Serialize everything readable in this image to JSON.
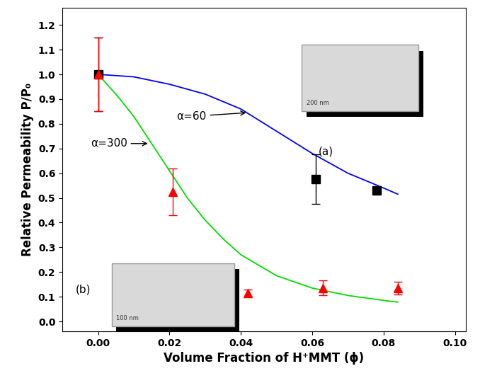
{
  "chart_data": {
    "type": "scatter",
    "x_label": "Volume Fraction of H⁺MMT (ϕ)",
    "y_label": "Relative Permeability P/P₀",
    "xlim": [
      -0.01,
      0.103
    ],
    "xticks": [
      {
        "value": 0.0,
        "label": "0.00"
      },
      {
        "value": 0.02,
        "label": "0.02"
      },
      {
        "value": 0.04,
        "label": "0.04"
      },
      {
        "value": 0.06,
        "label": "0.06"
      },
      {
        "value": 0.08,
        "label": "0.08"
      },
      {
        "value": 0.1,
        "label": "0.10"
      }
    ],
    "ylim": [
      -0.04,
      1.27
    ],
    "yticks": [
      0.0,
      0.1,
      0.2,
      0.3,
      0.4,
      0.5,
      0.6,
      0.7,
      0.8,
      0.9,
      1.0,
      1.1,
      1.2
    ],
    "grid": false,
    "series": [
      {
        "type": "line",
        "color": "#0000ff",
        "line_style": "solid",
        "x": [
          0.0,
          0.01,
          0.02,
          0.03,
          0.04,
          0.05,
          0.06,
          0.07,
          0.08,
          0.084
        ],
        "values": [
          1.0,
          0.99,
          0.96,
          0.92,
          0.86,
          0.77,
          0.68,
          0.6,
          0.54,
          0.515
        ]
      },
      {
        "type": "line",
        "color": "#00dd00",
        "line_style": "solid",
        "x": [
          0.0,
          0.005,
          0.01,
          0.015,
          0.02,
          0.025,
          0.03,
          0.035,
          0.04,
          0.05,
          0.06,
          0.07,
          0.08,
          0.084
        ],
        "values": [
          1.0,
          0.92,
          0.83,
          0.72,
          0.61,
          0.5,
          0.41,
          0.335,
          0.27,
          0.185,
          0.135,
          0.105,
          0.085,
          0.078
        ]
      },
      {
        "type": "scatter",
        "color": "#000000",
        "marker": "square",
        "x": [
          0.0,
          0.061,
          0.078
        ],
        "values": [
          1.0,
          0.575,
          0.53
        ],
        "errors": [
          0.15,
          0.1,
          0.01
        ]
      },
      {
        "type": "scatter",
        "color": "#ff0000",
        "marker": "triangle",
        "x": [
          0.0,
          0.021,
          0.042,
          0.063,
          0.084
        ],
        "values": [
          1.0,
          0.525,
          0.115,
          0.135,
          0.135
        ],
        "errors": [
          0.15,
          0.095,
          0.015,
          0.03,
          0.025
        ]
      }
    ],
    "annotations": [
      {
        "text": "α=60"
      },
      {
        "text": "α=300"
      },
      {
        "text": "(a)"
      },
      {
        "text": "(b)"
      },
      {
        "text": "200 nm"
      },
      {
        "text": "100 nm"
      }
    ]
  }
}
